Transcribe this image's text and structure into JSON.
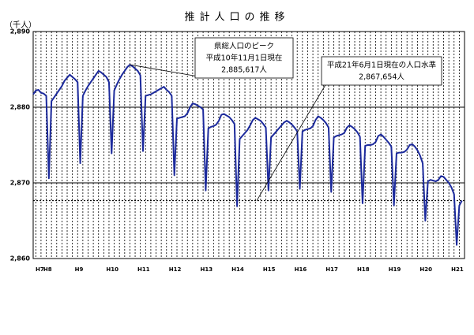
{
  "chart_data": {
    "type": "line",
    "title": "推計人口の推移",
    "y_unit": "（千人）",
    "categories": [
      "H7",
      null,
      null,
      "H8",
      null,
      null,
      null,
      null,
      null,
      null,
      null,
      null,
      null,
      null,
      null,
      "H9",
      null,
      null,
      null,
      null,
      null,
      null,
      null,
      null,
      null,
      null,
      null,
      "H10",
      null,
      null,
      null,
      null,
      null,
      null,
      null,
      null,
      null,
      null,
      null,
      "H11",
      null,
      null,
      null,
      null,
      null,
      null,
      null,
      null,
      null,
      null,
      null,
      "H12",
      null,
      null,
      null,
      null,
      null,
      null,
      null,
      null,
      null,
      null,
      null,
      "H13",
      null,
      null,
      null,
      null,
      null,
      null,
      null,
      null,
      null,
      null,
      null,
      "H14",
      null,
      null,
      null,
      null,
      null,
      null,
      null,
      null,
      null,
      null,
      null,
      "H15",
      null,
      null,
      null,
      null,
      null,
      null,
      null,
      null,
      null,
      null,
      null,
      "H16",
      null,
      null,
      null,
      null,
      null,
      null,
      null,
      null,
      null,
      null,
      null,
      "H17",
      null,
      null,
      null,
      null,
      null,
      null,
      null,
      null,
      null,
      null,
      null,
      "H18",
      null,
      null,
      null,
      null,
      null,
      null,
      null,
      null,
      null,
      null,
      null,
      "H19",
      null,
      null,
      null,
      null,
      null,
      null,
      null,
      null,
      null,
      null,
      null,
      "H20",
      null,
      null,
      null,
      null,
      null,
      null,
      null,
      null,
      null,
      null,
      null,
      "H21",
      null,
      null,
      null,
      null,
      null
    ],
    "series": [
      {
        "name": "推計人口",
        "color": "#1c2a9c",
        "values": [
          2881.7,
          2882.2,
          2882.3,
          2881.9,
          2881.8,
          2881.5,
          2870.6,
          2880.8,
          2881.3,
          2881.8,
          2882.3,
          2882.8,
          2883.5,
          2883.9,
          2884.3,
          2884.0,
          2883.7,
          2883.3,
          2872.6,
          2881.5,
          2882.2,
          2882.8,
          2883.3,
          2883.8,
          2884.3,
          2884.8,
          2884.6,
          2884.3,
          2884.0,
          2883.3,
          2873.9,
          2882.2,
          2883.0,
          2883.7,
          2884.3,
          2884.8,
          2885.3,
          2885.617,
          2885.4,
          2885.1,
          2884.8,
          2884.2,
          2874.2,
          2881.5,
          2881.6,
          2881.7,
          2881.9,
          2882.1,
          2882.3,
          2882.5,
          2882.7,
          2882.3,
          2882.0,
          2881.5,
          2871.0,
          2878.5,
          2878.6,
          2878.7,
          2878.8,
          2879.2,
          2880.0,
          2880.5,
          2880.4,
          2880.2,
          2880.0,
          2879.7,
          2869.0,
          2877.2,
          2877.4,
          2877.5,
          2877.7,
          2878.2,
          2879.0,
          2879.1,
          2878.9,
          2878.7,
          2878.3,
          2877.8,
          2866.9,
          2875.8,
          2876.2,
          2876.6,
          2877.0,
          2877.6,
          2878.3,
          2878.6,
          2878.4,
          2878.2,
          2877.8,
          2877.3,
          2869.0,
          2876.0,
          2876.4,
          2876.8,
          2877.2,
          2877.6,
          2878.0,
          2878.2,
          2878.0,
          2877.7,
          2877.3,
          2876.8,
          2869.2,
          2876.8,
          2877.0,
          2877.1,
          2877.2,
          2877.5,
          2878.3,
          2878.8,
          2878.6,
          2878.3,
          2877.9,
          2877.3,
          2868.8,
          2876.0,
          2876.2,
          2876.3,
          2876.4,
          2876.6,
          2877.3,
          2877.6,
          2877.4,
          2877.1,
          2876.7,
          2876.1,
          2867.3,
          2874.9,
          2875.0,
          2875.0,
          2875.1,
          2875.4,
          2876.2,
          2876.4,
          2876.1,
          2875.7,
          2875.3,
          2874.8,
          2867.0,
          2873.9,
          2874.0,
          2874.0,
          2874.1,
          2874.4,
          2875.0,
          2875.1,
          2874.8,
          2874.3,
          2873.6,
          2872.6,
          2865.0,
          2870.2,
          2870.4,
          2870.3,
          2870.2,
          2870.4,
          2870.9,
          2870.8,
          2870.4,
          2870.0,
          2869.4,
          2868.5,
          2861.8,
          2867.0,
          2867.654
        ]
      }
    ],
    "ylim": [
      2860,
      2890
    ],
    "yticks": [
      {
        "value": 2860,
        "label": "2,860"
      },
      {
        "value": 2870,
        "label": "2,870"
      },
      {
        "value": 2880,
        "label": "2,880"
      },
      {
        "value": 2890,
        "label": "2,890"
      }
    ],
    "reference_line": 2867.654,
    "annotations": [
      {
        "lines": [
          "県総人口のピーク",
          "平成10年11月1日現在",
          "2,885,617人"
        ],
        "index": 37
      },
      {
        "lines": [
          "平成21年6月1日現在の人口水準",
          "2,867,654人"
        ],
        "index": 164
      }
    ]
  }
}
